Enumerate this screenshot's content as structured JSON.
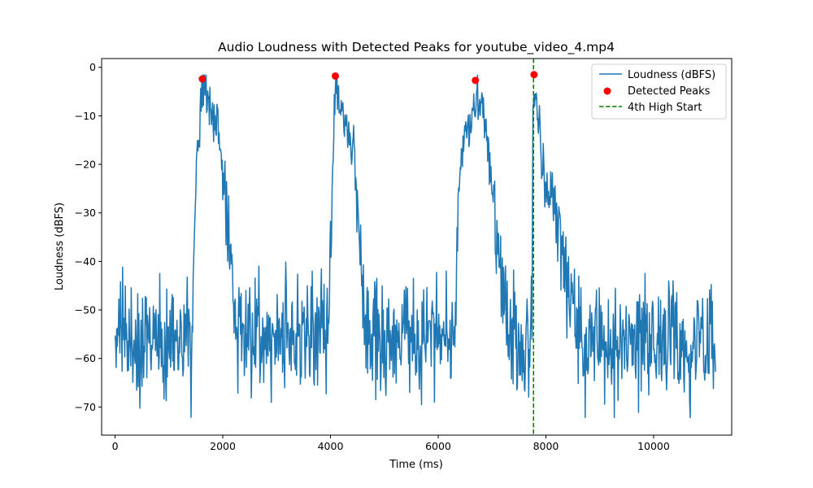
{
  "chart_data": {
    "type": "line",
    "title": "Audio Loudness with Detected Peaks for youtube_video_4.mp4",
    "xlabel": "Time (ms)",
    "ylabel": "Loudness (dBFS)",
    "xlim": [
      -250,
      11450
    ],
    "ylim": [
      -75.8,
      1.8
    ],
    "x_ticks": [
      0,
      2000,
      4000,
      6000,
      8000,
      10000
    ],
    "x_tick_labels": [
      "0",
      "2000",
      "4000",
      "6000",
      "8000",
      "10000"
    ],
    "y_ticks": [
      0,
      -10,
      -20,
      -30,
      -40,
      -50,
      -60,
      -70
    ],
    "y_tick_labels": [
      "0",
      "−10",
      "−20",
      "−30",
      "−40",
      "−50",
      "−60",
      "−70"
    ],
    "grid": false,
    "legend_position": "top-right",
    "series": [
      {
        "name": "Loudness (dBFS)",
        "kind": "line",
        "color": "#1f77b4",
        "x_range": [
          0,
          11150
        ],
        "x_step": 10,
        "envelope_x": [
          0,
          100,
          1200,
          1400,
          1440,
          1460,
          1500,
          1560,
          1600,
          1640,
          1700,
          1800,
          1900,
          2000,
          2100,
          2150,
          2200,
          2350,
          2500,
          3000,
          3500,
          3950,
          3990,
          4010,
          4050,
          4100,
          4200,
          4300,
          4400,
          4450,
          4500,
          4550,
          4600,
          4700,
          5000,
          5500,
          6000,
          6250,
          6300,
          6350,
          6400,
          6500,
          6600,
          6700,
          6800,
          6900,
          7000,
          7100,
          7200,
          7300,
          7500,
          7700,
          7740,
          7760,
          7800,
          7850,
          7900,
          8000,
          8100,
          8200,
          8300,
          8400,
          8500,
          8600,
          8700,
          9000,
          10000,
          11150
        ],
        "envelope_y": [
          -56,
          -56,
          -56,
          -56,
          -54,
          -40,
          -24,
          -17,
          -10,
          -4,
          -6,
          -10,
          -12,
          -20,
          -35,
          -42,
          -48,
          -54,
          -55,
          -55,
          -55,
          -55,
          -45,
          -30,
          -15,
          -4,
          -8,
          -13,
          -15,
          -22,
          -30,
          -38,
          -46,
          -55,
          -56,
          -55,
          -55,
          -55,
          -52,
          -38,
          -20,
          -14,
          -12,
          -7,
          -6,
          -14,
          -26,
          -37,
          -46,
          -55,
          -58,
          -60,
          -45,
          -10,
          -3,
          -8,
          -18,
          -25,
          -27,
          -30,
          -38,
          -44,
          -50,
          -57,
          -57,
          -57,
          -57,
          -57
        ],
        "noise_amplitude_db": 6,
        "reading_range": [
          -72.2,
          -1.6
        ]
      },
      {
        "name": "Detected Peaks",
        "kind": "scatter",
        "color": "#ff0000",
        "x": [
          1620,
          4090,
          6690,
          7780
        ],
        "y": [
          -2.4,
          -1.8,
          -2.7,
          -1.5
        ]
      },
      {
        "name": "4th High Start",
        "kind": "vline",
        "color": "#008000",
        "x": 7770
      }
    ],
    "legend": [
      {
        "label": "Loudness (dBFS)",
        "marker": "line",
        "color": "#1f77b4"
      },
      {
        "label": "Detected Peaks",
        "marker": "dot",
        "color": "#ff0000"
      },
      {
        "label": "4th High Start",
        "marker": "dashed",
        "color": "#008000"
      }
    ]
  }
}
